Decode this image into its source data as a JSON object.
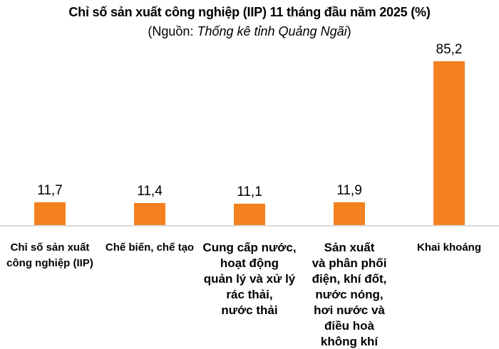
{
  "chart_data": {
    "type": "bar",
    "title": "Chỉ số sản xuất công nghiệp (IIP) 11 tháng đầu năm 2025 (%)",
    "source_prefix": "(Nguồn: ",
    "source": "Thống kê tỉnh Quảng Ngãi",
    "source_suffix": ")",
    "categories": [
      "Chỉ số sản xuất công nghiệp (IIP)",
      "Chế biến, chế tạo",
      "Cung cấp nước, hoạt động quản lý và xử lý rác thải, nước thải",
      "Sản xuất và phân phối điện, khí đốt, nước nóng, hơi nước và điều hoà không khí",
      "Khai khoáng"
    ],
    "category_display_lines": [
      [
        "Chỉ số sản xuất",
        "công nghiệp (IIP)"
      ],
      [
        "Chế biến, chế tạo"
      ],
      [
        "Cung cấp nước,",
        "hoạt động",
        "quản lý và xử lý",
        "rác thải,",
        "nước thải"
      ],
      [
        "Sản xuất",
        "và phân phối",
        "điện, khí đốt,",
        "nước nóng,",
        "hơi nước và",
        "điều hoà",
        "không khí"
      ],
      [
        "Khai khoáng"
      ]
    ],
    "values": [
      11.7,
      11.4,
      11.1,
      11.9,
      85.2
    ],
    "value_labels": [
      "11,7",
      "11,4",
      "11,1",
      "11,9",
      "85,2"
    ],
    "xlabel": "",
    "ylabel": "",
    "ylim": [
      0,
      90
    ],
    "grid": false,
    "legend": false,
    "value_label_position": "above-bar",
    "bar_color": "#F48120",
    "axis_line_color": "#D9D9D9",
    "text_color": "#000000",
    "background_color": "#FFFFFF",
    "category_font_px": [
      15,
      15,
      17,
      17,
      15
    ]
  }
}
